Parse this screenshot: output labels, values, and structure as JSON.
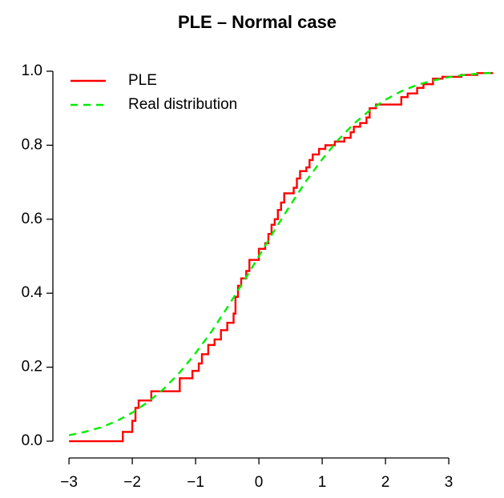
{
  "chart_data": {
    "type": "line",
    "title": "PLE – Normal case",
    "xlim": [
      -3.28,
      3.68
    ],
    "ylim": [
      -0.04,
      1.04
    ],
    "xticks": [
      {
        "value": -3,
        "label": "−3"
      },
      {
        "value": -2,
        "label": "−2"
      },
      {
        "value": -1,
        "label": "−1"
      },
      0,
      1,
      2,
      3
    ],
    "yticks": [
      {
        "value": 0,
        "label": "0.0"
      },
      0.2,
      0.4,
      0.6,
      0.8,
      {
        "value": 1,
        "label": "1.0"
      }
    ],
    "legend": "top-left",
    "series": [
      {
        "name": "PLE",
        "color": "#ff0000",
        "style": "step",
        "x": [
          -3,
          -2.15,
          -2.0,
          -1.95,
          -1.9,
          -1.7,
          -1.25,
          -1.05,
          -0.95,
          -0.9,
          -0.8,
          -0.7,
          -0.6,
          -0.5,
          -0.4,
          -0.37,
          -0.33,
          -0.28,
          -0.2,
          -0.15,
          0.0,
          0.1,
          0.15,
          0.2,
          0.25,
          0.3,
          0.35,
          0.4,
          0.55,
          0.6,
          0.65,
          0.75,
          0.8,
          0.85,
          0.95,
          1.05,
          1.2,
          1.35,
          1.45,
          1.5,
          1.6,
          1.7,
          1.75,
          1.85,
          2.25,
          2.35,
          2.5,
          2.6,
          2.75,
          2.9,
          3.2,
          3.45
        ],
        "values": [
          0,
          0.025,
          0.055,
          0.09,
          0.11,
          0.135,
          0.17,
          0.19,
          0.21,
          0.235,
          0.26,
          0.275,
          0.3,
          0.32,
          0.345,
          0.39,
          0.42,
          0.44,
          0.46,
          0.49,
          0.52,
          0.535,
          0.56,
          0.585,
          0.6,
          0.625,
          0.645,
          0.67,
          0.685,
          0.71,
          0.73,
          0.74,
          0.76,
          0.775,
          0.79,
          0.8,
          0.81,
          0.82,
          0.835,
          0.85,
          0.86,
          0.875,
          0.9,
          0.91,
          0.93,
          0.94,
          0.955,
          0.965,
          0.98,
          0.985,
          0.99,
          0.995
        ]
      },
      {
        "name": "Real distribution",
        "color": "#00ee00",
        "style": "dashed",
        "x": [
          -3,
          -2.75,
          -2.5,
          -2.25,
          -2,
          -1.75,
          -1.5,
          -1.25,
          -1,
          -0.75,
          -0.5,
          -0.25,
          0,
          0.25,
          0.5,
          0.75,
          1,
          1.25,
          1.5,
          1.75,
          2,
          2.25,
          2.5,
          2.75,
          3,
          3.25,
          3.5,
          3.7
        ],
        "values": [
          0.016,
          0.025,
          0.037,
          0.054,
          0.077,
          0.106,
          0.142,
          0.186,
          0.238,
          0.296,
          0.361,
          0.429,
          0.5,
          0.571,
          0.639,
          0.704,
          0.762,
          0.814,
          0.858,
          0.894,
          0.923,
          0.946,
          0.963,
          0.975,
          0.984,
          0.99,
          0.994,
          0.996
        ]
      }
    ]
  }
}
